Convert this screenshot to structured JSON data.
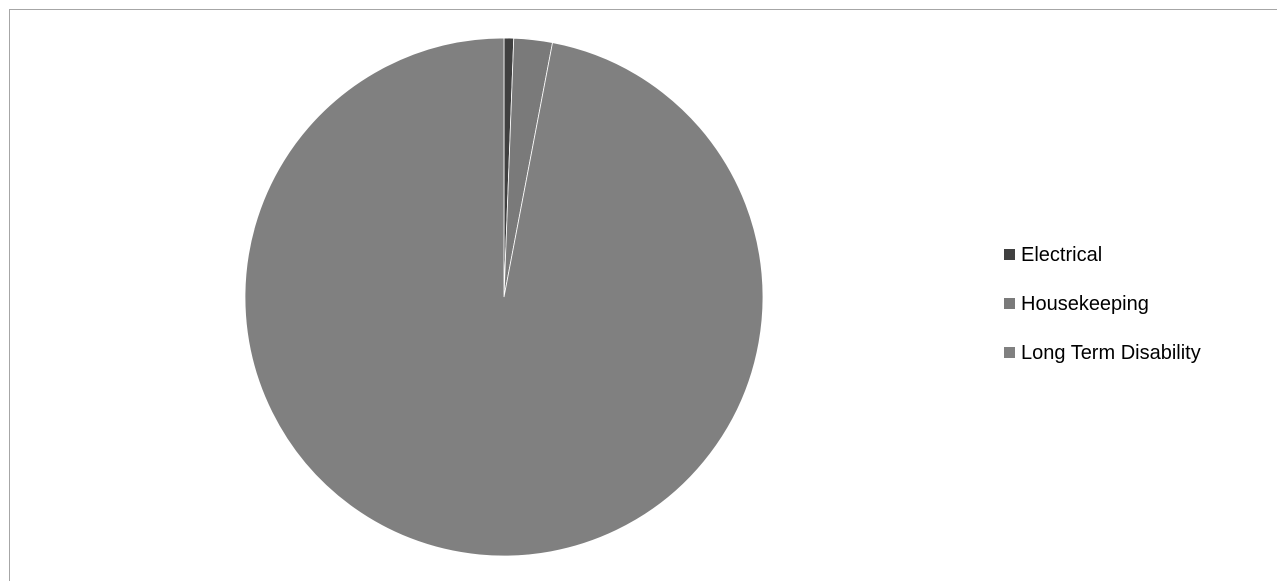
{
  "chart_data": {
    "type": "pie",
    "title": "",
    "categories": [
      "Electrical",
      "Housekeeping",
      "Long Term Disability"
    ],
    "values": [
      0.6,
      2.4,
      97.0
    ],
    "colors": [
      "#404040",
      "#7a7a7a",
      "#808080"
    ],
    "legend_position": "right",
    "start_angle_deg": 0,
    "direction": "clockwise"
  }
}
